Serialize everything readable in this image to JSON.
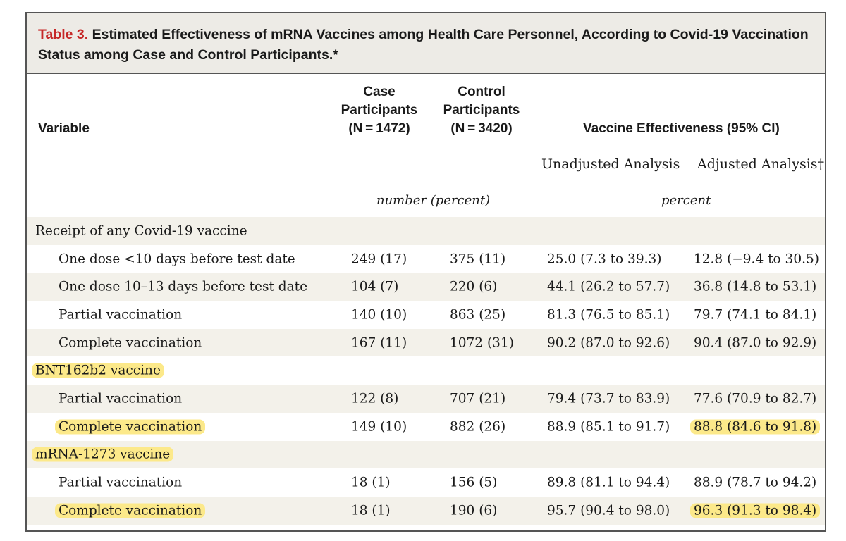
{
  "title": {
    "label": "Table 3.",
    "text": "Estimated Effectiveness of mRNA Vaccines among Health Care Personnel, According to Covid-19 Vaccination Status among Case and Control Participants.*"
  },
  "headers": {
    "variable": "Variable",
    "case": [
      "Case",
      "Participants",
      "(N = 1472)"
    ],
    "control": [
      "Control",
      "Participants",
      "(N = 3420)"
    ],
    "effectiveness": "Vaccine Effectiveness (95% CI)",
    "unadjusted": "Unadjusted Analysis",
    "adjusted": "Adjusted Analysis†",
    "units_counts": "number (percent)",
    "units_percent": "percent"
  },
  "rows": [
    {
      "label": "Receipt of any Covid-19 vaccine",
      "indent": false,
      "case": "",
      "control": "",
      "unadjusted": "",
      "adjusted": ""
    },
    {
      "label": "One dose <10 days before test date",
      "indent": true,
      "case": "249 (17)",
      "control": "375 (11)",
      "unadjusted": "25.0 (7.3 to 39.3)",
      "adjusted": "12.8 (−9.4 to 30.5)"
    },
    {
      "label": "One dose 10–13 days before test date",
      "indent": true,
      "case": "104 (7)",
      "control": "220 (6)",
      "unadjusted": "44.1 (26.2 to 57.7)",
      "adjusted": "36.8 (14.8 to 53.1)"
    },
    {
      "label": "Partial vaccination",
      "indent": true,
      "case": "140 (10)",
      "control": "863 (25)",
      "unadjusted": "81.3 (76.5 to 85.1)",
      "adjusted": "79.7 (74.1 to 84.1)"
    },
    {
      "label": "Complete vaccination",
      "indent": true,
      "case": "167 (11)",
      "control": "1072 (31)",
      "unadjusted": "90.2 (87.0 to 92.6)",
      "adjusted": "90.4 (87.0 to 92.9)"
    },
    {
      "label": "BNT162b2 vaccine",
      "indent": false,
      "case": "",
      "control": "",
      "unadjusted": "",
      "adjusted": ""
    },
    {
      "label": "Partial vaccination",
      "indent": true,
      "case": "122 (8)",
      "control": "707 (21)",
      "unadjusted": "79.4 (73.7 to 83.9)",
      "adjusted": "77.6 (70.9 to 82.7)"
    },
    {
      "label": "Complete vaccination",
      "indent": true,
      "case": "149 (10)",
      "control": "882 (26)",
      "unadjusted": "88.9 (85.1 to 91.7)",
      "adjusted": "88.8 (84.6 to 91.8)"
    },
    {
      "label": "mRNA-1273 vaccine",
      "indent": false,
      "case": "",
      "control": "",
      "unadjusted": "",
      "adjusted": ""
    },
    {
      "label": "Partial vaccination",
      "indent": true,
      "case": "18 (1)",
      "control": "156 (5)",
      "unadjusted": "89.8 (81.1 to 94.4)",
      "adjusted": "88.9 (78.7 to 94.2)"
    },
    {
      "label": "Complete vaccination",
      "indent": true,
      "case": "18 (1)",
      "control": "190 (6)",
      "unadjusted": "95.7 (90.4 to 98.0)",
      "adjusted": "96.3 (91.3 to 98.4)"
    }
  ],
  "highlights": {
    "color": "#fce98a",
    "label_rows": [
      5,
      7,
      8,
      10
    ],
    "adjusted_rows": [
      7,
      10
    ]
  },
  "colors": {
    "title_label": "#c62828",
    "title_background": "#edebe6",
    "row_shading": "#f3f1ea",
    "border": "#555555"
  }
}
